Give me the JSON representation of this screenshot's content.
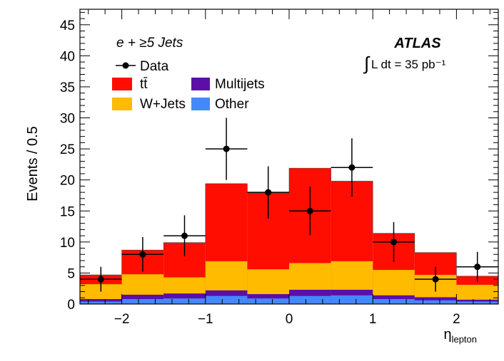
{
  "chart_data": {
    "type": "bar",
    "stacked": true,
    "title": "",
    "xlabel": "η",
    "xlabel_sub": "lepton",
    "ylabel": "Events / 0.5",
    "xlim": [
      -2.5,
      2.5
    ],
    "ylim": [
      0,
      47.5
    ],
    "xticks": [
      -2,
      -1,
      0,
      1,
      2
    ],
    "xtick_labels": [
      "−2",
      "−1",
      "0",
      "1",
      "2"
    ],
    "yticks": [
      0,
      5,
      10,
      15,
      20,
      25,
      30,
      35,
      40,
      45
    ],
    "ytick_labels": [
      "0",
      "5",
      "10",
      "15",
      "20",
      "25",
      "30",
      "35",
      "40",
      "45"
    ],
    "bin_edges": [
      -2.5,
      -2.0,
      -1.5,
      -1.0,
      -0.5,
      0.0,
      0.5,
      1.0,
      1.5,
      2.0,
      2.5
    ],
    "bin_centers": [
      -2.25,
      -1.75,
      -1.25,
      -0.75,
      -0.25,
      0.25,
      0.75,
      1.25,
      1.75,
      2.25
    ],
    "series": [
      {
        "name": "Other",
        "color": "#4488ff",
        "values": [
          0.4,
          0.8,
          0.9,
          1.3,
          0.9,
          1.3,
          1.4,
          0.8,
          0.6,
          0.4
        ]
      },
      {
        "name": "Multijets",
        "color": "#5b0fa8",
        "values": [
          0.4,
          0.7,
          0.8,
          0.9,
          0.7,
          1.0,
          0.9,
          0.6,
          0.5,
          0.3
        ]
      },
      {
        "name": "W+Jets",
        "color": "#ffbb00",
        "values": [
          2.4,
          3.3,
          2.6,
          4.7,
          4.0,
          4.3,
          4.6,
          4.1,
          3.6,
          2.4
        ]
      },
      {
        "name": "tt̄",
        "color": "#ff0d00",
        "values": [
          1.5,
          3.9,
          5.6,
          12.5,
          12.3,
          15.3,
          12.9,
          5.9,
          3.6,
          1.4
        ]
      }
    ],
    "data": {
      "name": "Data",
      "values": [
        4,
        8,
        11,
        25,
        18,
        15,
        22,
        10,
        4,
        6
      ],
      "errors": [
        2.0,
        2.8,
        3.3,
        5.0,
        4.2,
        3.9,
        4.7,
        3.2,
        2.0,
        2.4
      ]
    },
    "legend": {
      "placement": "top-left",
      "entries": [
        "Data",
        "tt̄",
        "Multijets",
        "W+Jets",
        "Other"
      ]
    },
    "annotations": {
      "channel": "e + ≥5 Jets",
      "experiment": "ATLAS",
      "lumi_integral": "∫",
      "lumi_text": "L dt = 35 pb⁻¹"
    }
  }
}
